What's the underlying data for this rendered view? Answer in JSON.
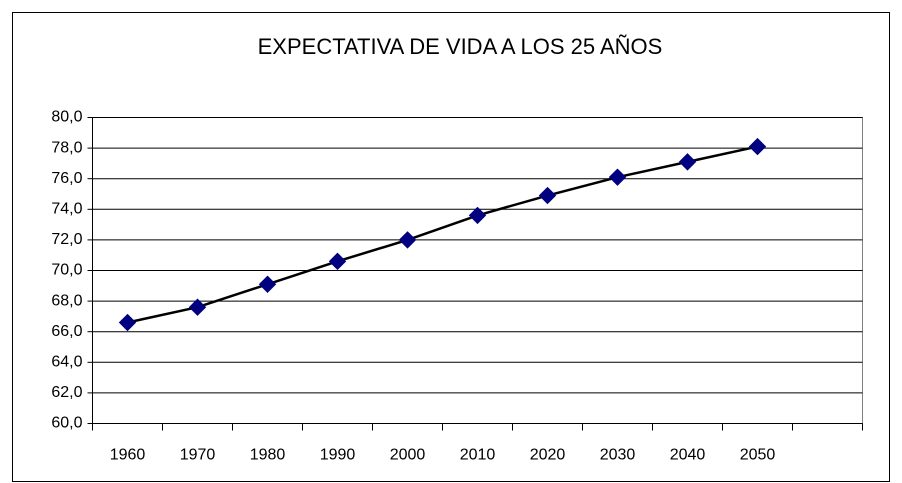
{
  "chart_data": {
    "type": "line",
    "title": "EXPECTATIVA DE VIDA A LOS 25 AÑOS",
    "categories": [
      "1960",
      "1970",
      "1980",
      "1990",
      "2000",
      "2010",
      "2020",
      "2030",
      "2040",
      "2050",
      null
    ],
    "series": [
      {
        "values": [
          66.6,
          67.6,
          69.1,
          70.6,
          72.0,
          73.6,
          74.9,
          76.1,
          77.1,
          78.1,
          null
        ],
        "color": "#000080",
        "line_color": "#000000"
      }
    ],
    "ylim": [
      60,
      80
    ],
    "yticks": [
      {
        "value": 60,
        "label": "60,0"
      },
      {
        "value": 62,
        "label": "62,0"
      },
      {
        "value": 64,
        "label": "64,0"
      },
      {
        "value": 66,
        "label": "66,0"
      },
      {
        "value": 68,
        "label": "68,0"
      },
      {
        "value": 70,
        "label": "70,0"
      },
      {
        "value": 72,
        "label": "72,0"
      },
      {
        "value": 74,
        "label": "74,0"
      },
      {
        "value": 76,
        "label": "76,0"
      },
      {
        "value": 78,
        "label": "78,0"
      },
      {
        "value": 80,
        "label": "80,0"
      }
    ],
    "grid": true
  }
}
